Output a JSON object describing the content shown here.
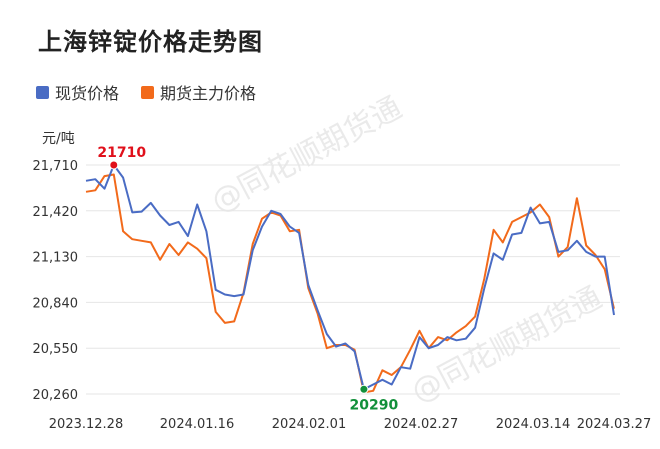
{
  "title": "上海锌锭价格走势图",
  "unit": "元/吨",
  "watermark": "@同花顺期货通",
  "legend": [
    {
      "name": "现货价格",
      "color": "#4a6cc4"
    },
    {
      "name": "期货主力价格",
      "color": "#f26a1b"
    }
  ],
  "chart_data": {
    "type": "line",
    "ylim": [
      20260,
      21710
    ],
    "yticks": [
      "21,710",
      "21,420",
      "21,130",
      "20,840",
      "20,550",
      "20,260"
    ],
    "ytick_values": [
      21710,
      21420,
      21130,
      20840,
      20550,
      20260
    ],
    "xticks": [
      "2023.12.28",
      "2024.01.16",
      "2024.02.01",
      "2024.02.27",
      "2024.03.14",
      "2024.03.27"
    ],
    "series": [
      {
        "name": "现货价格",
        "color": "#4a6cc4",
        "values": [
          21610,
          21620,
          21560,
          21710,
          21630,
          21410,
          21415,
          21470,
          21390,
          21330,
          21350,
          21260,
          21460,
          21290,
          20920,
          20890,
          20880,
          20890,
          21170,
          21320,
          21420,
          21400,
          21320,
          21280,
          20950,
          20790,
          20640,
          20560,
          20580,
          20530,
          20290,
          20320,
          20350,
          20320,
          20430,
          20420,
          20620,
          20550,
          20570,
          20620,
          20600,
          20610,
          20680,
          20930,
          21150,
          21110,
          21270,
          21280,
          21440,
          21340,
          21350,
          21160,
          21170,
          21230,
          21160,
          21130,
          21130,
          20760
        ]
      },
      {
        "name": "期货主力价格",
        "color": "#f26a1b",
        "values": [
          21540,
          21550,
          21640,
          21650,
          21290,
          21240,
          21230,
          21220,
          21110,
          21210,
          21140,
          21220,
          21180,
          21120,
          20780,
          20710,
          20720,
          20900,
          21210,
          21370,
          21410,
          21390,
          21290,
          21300,
          20930,
          20770,
          20550,
          20570,
          20570,
          20540,
          20270,
          20280,
          20410,
          20380,
          20430,
          20540,
          20660,
          20550,
          20620,
          20600,
          20650,
          20690,
          20750,
          20990,
          21300,
          21220,
          21350,
          21380,
          21410,
          21460,
          21380,
          21130,
          21190,
          21500,
          21200,
          21140,
          21050,
          20800
        ]
      }
    ],
    "annotations": [
      {
        "label": "21710",
        "series": 0,
        "index": 3,
        "color": "#e0101b"
      },
      {
        "label": "20290",
        "series": 0,
        "index": 30,
        "color": "#12903a"
      }
    ]
  }
}
